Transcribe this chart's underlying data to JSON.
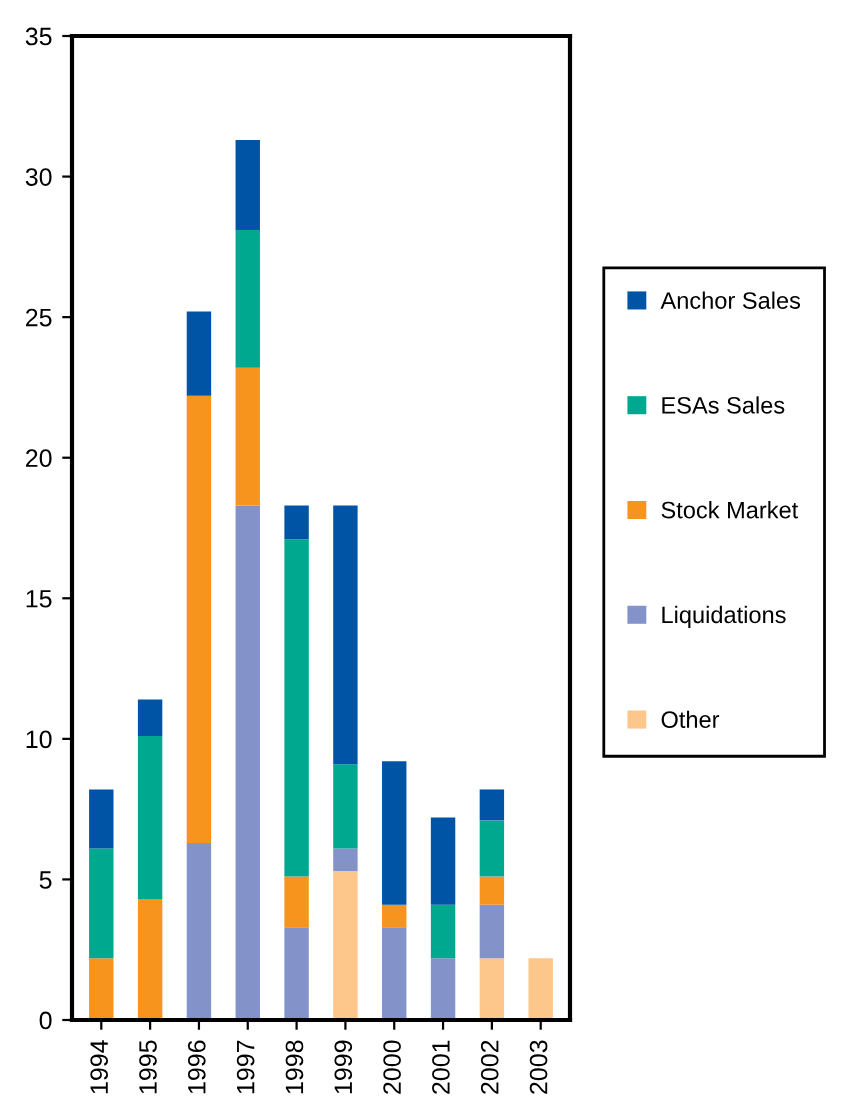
{
  "chart_data": {
    "type": "bar",
    "stacked": true,
    "categories": [
      "1994",
      "1995",
      "1996",
      "1997",
      "1998",
      "1999",
      "2000",
      "2001",
      "2002",
      "2003"
    ],
    "series": [
      {
        "name": "Other",
        "color": "#fdc68a",
        "values": [
          0,
          0,
          0,
          0,
          0,
          5.3,
          0,
          0,
          2.2,
          2.2
        ]
      },
      {
        "name": "Liquidations",
        "color": "#8393ca",
        "values": [
          0,
          0,
          6.3,
          18.3,
          3.3,
          0.8,
          3.3,
          2.2,
          1.9,
          0
        ]
      },
      {
        "name": "Stock Market",
        "color": "#f7941d",
        "values": [
          2.2,
          4.3,
          15.9,
          4.9,
          1.8,
          0,
          0.8,
          0,
          1.0,
          0
        ]
      },
      {
        "name": "ESAs Sales",
        "color": "#00a88f",
        "values": [
          3.9,
          5.8,
          0,
          4.9,
          12.0,
          3.0,
          0,
          1.9,
          2.0,
          0
        ]
      },
      {
        "name": "Anchor Sales",
        "color": "#0054a6",
        "values": [
          2.1,
          1.3,
          3.0,
          3.2,
          1.2,
          9.2,
          5.1,
          3.1,
          1.1,
          0
        ]
      }
    ],
    "ylim": [
      0,
      35
    ],
    "yticks": [
      0,
      5,
      10,
      15,
      20,
      25,
      30,
      35
    ],
    "grid": false,
    "legend": "right"
  }
}
